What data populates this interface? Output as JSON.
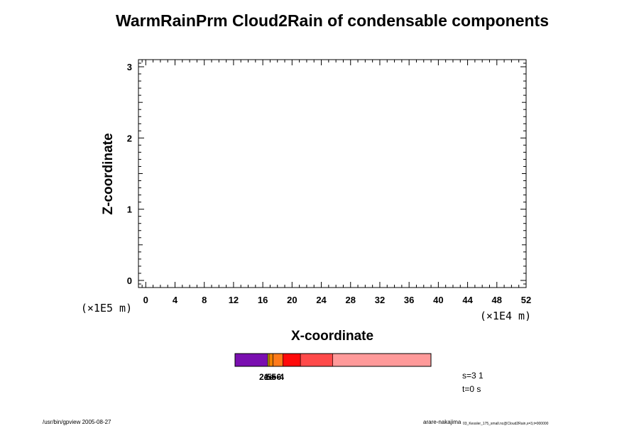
{
  "chart_data": {
    "type": "heatmap",
    "title": "WarmRainPrm Cloud2Rain of condensable components",
    "xlabel": "X-coordinate",
    "ylabel": "Z-coordinate",
    "x_ticks": [
      "0",
      "4",
      "8",
      "12",
      "16",
      "20",
      "24",
      "28",
      "32",
      "36",
      "40",
      "44",
      "48",
      "52"
    ],
    "y_ticks": [
      "0",
      "1",
      "2",
      "3"
    ],
    "x_unit": "(×1E4 m)",
    "y_unit": "(×1E5 m)",
    "xlim": [
      -1,
      52
    ],
    "ylim": [
      -0.1,
      3.1
    ],
    "grid": false,
    "colorbar": {
      "colors": [
        "#7a0fb0",
        "#f2d000",
        "#f08000",
        "#ff7a1a",
        "#ff0a0a",
        "#ff4a4a",
        "#ff9a9a"
      ],
      "widths": [
        0.167,
        0.007,
        0.02,
        0.05,
        0.09,
        0.165,
        0.501
      ],
      "labels": [
        "2e-5",
        "5e-4",
        "1e-6"
      ]
    },
    "info_s": "s=3 1",
    "info_t": "t=0 s"
  },
  "footer": {
    "left": "/usr/bin/gpview 2005-08-27",
    "right_main": "arare-nakajima",
    "right_small": "03_Kessler_175_small.nc@Cloud2Rain,s=3,t=000000"
  }
}
